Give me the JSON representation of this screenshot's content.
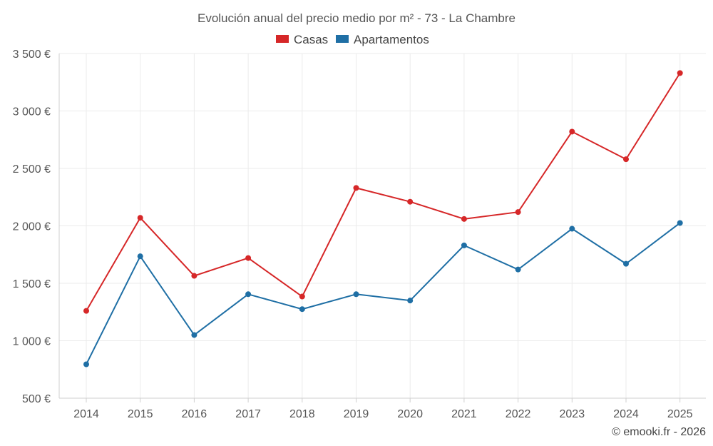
{
  "chart_data": {
    "type": "line",
    "title": "Evolución anual del precio medio por m² - 73 - La Chambre",
    "categories": [
      "2014",
      "2015",
      "2016",
      "2017",
      "2018",
      "2019",
      "2020",
      "2021",
      "2022",
      "2023",
      "2024",
      "2025"
    ],
    "y_ticks": [
      500,
      1000,
      1500,
      2000,
      2500,
      3000,
      3500
    ],
    "y_tick_labels": [
      "500 €",
      "1 000 €",
      "1 500 €",
      "2 000 €",
      "2 500 €",
      "3 000 €",
      "3 500 €"
    ],
    "ylim": [
      500,
      3500
    ],
    "xlabel": "",
    "ylabel": "",
    "grid": true,
    "legend_position": "top-center",
    "series": [
      {
        "name": "Casas",
        "color": "#d62728",
        "values": [
          1260,
          2070,
          1565,
          1720,
          1385,
          2330,
          2210,
          2060,
          2120,
          2820,
          2580,
          3330
        ]
      },
      {
        "name": "Apartamentos",
        "color": "#1f6fa5",
        "values": [
          795,
          1735,
          1050,
          1405,
          1275,
          1405,
          1350,
          1830,
          1620,
          1975,
          1670,
          2025
        ]
      }
    ]
  },
  "credit": "© emooki.fr - 2026"
}
